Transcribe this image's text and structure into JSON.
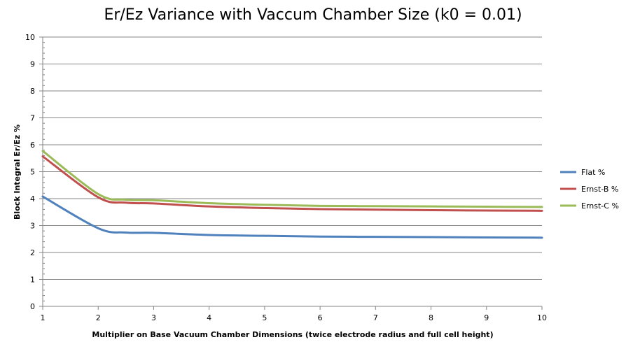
{
  "chart_data": {
    "type": "line",
    "title": "Er/Ez Variance with Vaccum Chamber Size (k0 = 0.01)",
    "xlabel": "Multiplier on Base Vacuum Chamber Dimensions (twice electrode radius and full cell height)",
    "ylabel": "Block Integral Er/Ez %",
    "xlim": [
      1,
      10
    ],
    "ylim": [
      0,
      10
    ],
    "x_ticks": [
      "1",
      "2",
      "3",
      "4",
      "5",
      "6",
      "7",
      "8",
      "9",
      "10"
    ],
    "y_ticks": [
      "0",
      "1",
      "2",
      "3",
      "4",
      "5",
      "6",
      "7",
      "8",
      "9",
      "10"
    ],
    "grid": "horizontal major lines",
    "legend_position": "right",
    "series": [
      {
        "name": "Flat %",
        "color": "#4f81bd",
        "x": [
          1,
          2,
          2.5,
          3,
          4,
          5,
          6,
          7,
          8,
          9,
          10
        ],
        "values": [
          4.08,
          2.9,
          2.74,
          2.73,
          2.65,
          2.62,
          2.59,
          2.58,
          2.57,
          2.56,
          2.55
        ]
      },
      {
        "name": "Ernst-B %",
        "color": "#c0504d",
        "x": [
          1,
          2,
          2.5,
          3,
          4,
          5,
          6,
          7,
          8,
          9,
          10
        ],
        "values": [
          5.57,
          4.05,
          3.85,
          3.82,
          3.71,
          3.65,
          3.61,
          3.59,
          3.57,
          3.56,
          3.55
        ]
      },
      {
        "name": "Ernst-C %",
        "color": "#9bbb59",
        "x": [
          1,
          2,
          2.5,
          3,
          4,
          5,
          6,
          7,
          8,
          9,
          10
        ],
        "values": [
          5.77,
          4.17,
          3.96,
          3.94,
          3.83,
          3.77,
          3.73,
          3.72,
          3.71,
          3.7,
          3.69
        ]
      }
    ]
  }
}
